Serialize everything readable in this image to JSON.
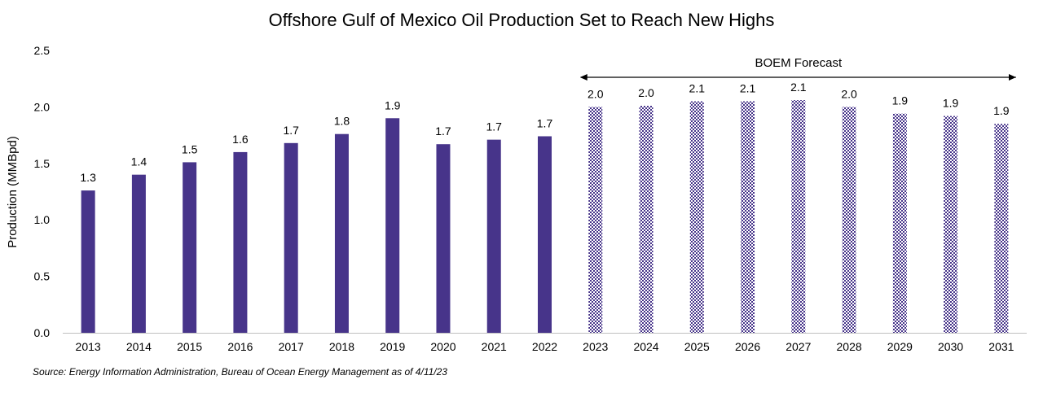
{
  "chart_data": {
    "type": "bar",
    "title": "Offshore Gulf of Mexico Oil Production Set to Reach New Highs",
    "ylabel": "Production (MMBpd)",
    "xlabel": "",
    "ylim": [
      0,
      2.5
    ],
    "yticks": [
      "0.0",
      "0.5",
      "1.0",
      "1.5",
      "2.0",
      "2.5"
    ],
    "grid": false,
    "categories": [
      "2013",
      "2014",
      "2015",
      "2016",
      "2017",
      "2018",
      "2019",
      "2020",
      "2021",
      "2022",
      "2023",
      "2024",
      "2025",
      "2026",
      "2027",
      "2028",
      "2029",
      "2030",
      "2031"
    ],
    "values": [
      1.26,
      1.4,
      1.51,
      1.6,
      1.68,
      1.76,
      1.9,
      1.67,
      1.71,
      1.74,
      2.0,
      2.01,
      2.05,
      2.05,
      2.06,
      2.0,
      1.94,
      1.92,
      1.85
    ],
    "data_labels": [
      "1.3",
      "1.4",
      "1.5",
      "1.6",
      "1.7",
      "1.8",
      "1.9",
      "1.7",
      "1.7",
      "1.7",
      "2.0",
      "2.0",
      "2.1",
      "2.1",
      "2.1",
      "2.0",
      "1.9",
      "1.9",
      "1.9"
    ],
    "forecast_start_index": 10,
    "forecast_label": "BOEM Forecast",
    "actual_color": "#47348a",
    "forecast_pattern": "checkered"
  },
  "source_note": "Source: Energy Information Administration, Bureau of Ocean Energy Management as of 4/11/23"
}
